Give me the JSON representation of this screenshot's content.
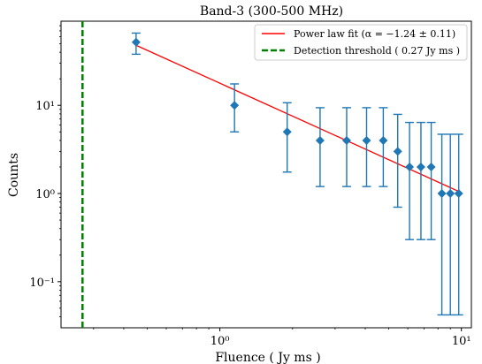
{
  "chart_data": {
    "type": "scatter",
    "title": "Band-3 (300-500 MHz)",
    "xlabel": "Fluence ( Jy ms )",
    "ylabel": "Counts",
    "xscale": "log",
    "yscale": "log",
    "xlim": [
      0.22,
      11
    ],
    "ylim": [
      0.03,
      90
    ],
    "x_ticks": [
      {
        "value": 1,
        "label": "10⁰"
      },
      {
        "value": 10,
        "label": "10¹"
      }
    ],
    "y_ticks": [
      {
        "value": 0.1,
        "label": "10⁻¹"
      },
      {
        "value": 1,
        "label": "10⁰"
      },
      {
        "value": 10,
        "label": "10¹"
      }
    ],
    "series": [
      {
        "kind": "errorbar",
        "marker": "diamond",
        "color": "#1f77b4",
        "points": [
          {
            "x": 0.45,
            "y": 52,
            "ylo": 38,
            "yhi": 66
          },
          {
            "x": 1.15,
            "y": 10,
            "ylo": 5.0,
            "yhi": 17.5
          },
          {
            "x": 1.9,
            "y": 5,
            "ylo": 1.75,
            "yhi": 10.7
          },
          {
            "x": 2.6,
            "y": 4,
            "ylo": 1.2,
            "yhi": 9.4
          },
          {
            "x": 3.35,
            "y": 4,
            "ylo": 1.2,
            "yhi": 9.4
          },
          {
            "x": 4.05,
            "y": 4,
            "ylo": 1.2,
            "yhi": 9.4
          },
          {
            "x": 4.75,
            "y": 4,
            "ylo": 1.2,
            "yhi": 9.4
          },
          {
            "x": 5.45,
            "y": 3,
            "ylo": 0.7,
            "yhi": 7.9
          },
          {
            "x": 6.1,
            "y": 2,
            "ylo": 0.3,
            "yhi": 6.4
          },
          {
            "x": 6.8,
            "y": 2,
            "ylo": 0.3,
            "yhi": 6.4
          },
          {
            "x": 7.5,
            "y": 2,
            "ylo": 0.3,
            "yhi": 6.4
          },
          {
            "x": 8.3,
            "y": 1,
            "ylo": 0.042,
            "yhi": 4.7
          },
          {
            "x": 9.0,
            "y": 1,
            "ylo": 0.042,
            "yhi": 4.7
          },
          {
            "x": 9.75,
            "y": 1,
            "ylo": 0.042,
            "yhi": 4.7
          }
        ]
      },
      {
        "kind": "line",
        "name": "Power law fit (α = −1.24 ± 0.11)",
        "color": "#ff0000",
        "x": [
          0.45,
          9.8
        ],
        "y": [
          48,
          1.05
        ]
      },
      {
        "kind": "vline",
        "name": "Detection threshold ( 0.27 Jy ms )",
        "color": "#008000",
        "linestyle": "dashed",
        "x": 0.27
      }
    ],
    "legend": {
      "position": "top-right",
      "entries": [
        "Power law fit (α = −1.24 ± 0.11)",
        "Detection threshold ( 0.27 Jy ms )"
      ]
    },
    "grid": false
  }
}
